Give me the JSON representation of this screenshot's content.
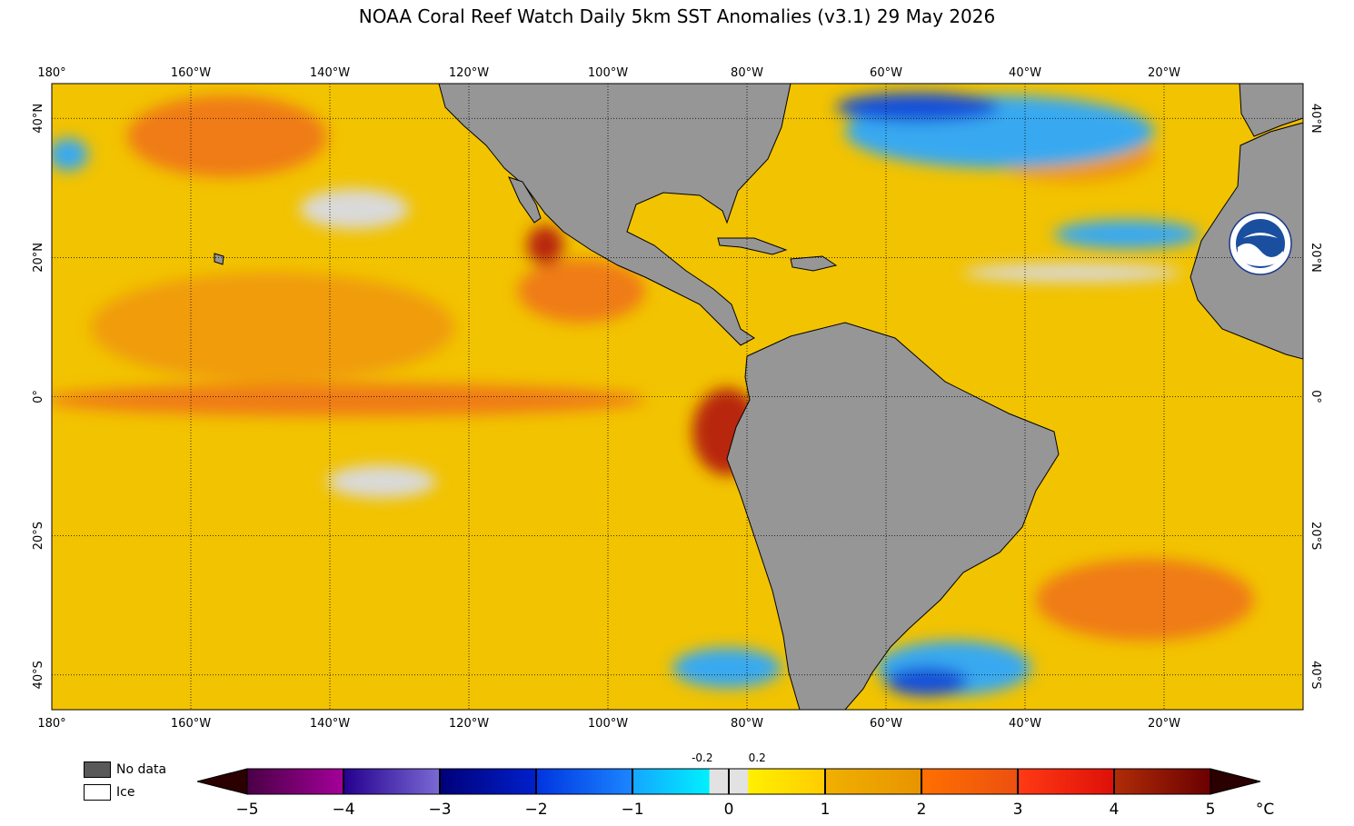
{
  "title": "NOAA Coral Reef Watch Daily 5km SST Anomalies  (v3.1)   29 May 2026",
  "map": {
    "lon_range": [
      -180,
      0
    ],
    "lat_range": [
      -45,
      45
    ],
    "lon_ticks": [
      {
        "lon": -180,
        "label": "180°"
      },
      {
        "lon": -160,
        "label": "160°W"
      },
      {
        "lon": -140,
        "label": "140°W"
      },
      {
        "lon": -120,
        "label": "120°W"
      },
      {
        "lon": -100,
        "label": "100°W"
      },
      {
        "lon": -80,
        "label": "80°W"
      },
      {
        "lon": -60,
        "label": "60°W"
      },
      {
        "lon": -40,
        "label": "40°W"
      },
      {
        "lon": -20,
        "label": "20°W"
      }
    ],
    "lat_ticks": [
      {
        "lat": 40,
        "label": "40°N"
      },
      {
        "lat": 20,
        "label": "20°N"
      },
      {
        "lat": 0,
        "label": "0°"
      },
      {
        "lat": -20,
        "label": "20°S"
      },
      {
        "lat": -40,
        "label": "40°S"
      }
    ],
    "colors": {
      "land": "#969696",
      "ocean_base": "#f2c300",
      "warm": "#ef7b16",
      "hot": "#b8280e",
      "cool": "#37a9f0",
      "cold": "#1450d8",
      "neutral": "#d9d9d9"
    },
    "logo_icon": "noaa-logo-icon"
  },
  "legend": {
    "no_data": "No data",
    "ice": "Ice",
    "unit": "°C",
    "ticks": [
      "−5",
      "−4",
      "−3",
      "−2",
      "−1",
      "0",
      "1",
      "2",
      "3",
      "4",
      "5"
    ],
    "small_ticks": [
      "-0.2",
      "0.2"
    ],
    "segments": [
      {
        "from": -5,
        "to": -4,
        "c1": "#4a0046",
        "c2": "#a4009a"
      },
      {
        "from": -4,
        "to": -3,
        "c1": "#25008e",
        "c2": "#7a6ad4"
      },
      {
        "from": -3,
        "to": -2,
        "c1": "#000078",
        "c2": "#0020cc"
      },
      {
        "from": -2,
        "to": -1,
        "c1": "#0034e0",
        "c2": "#1c86ff"
      },
      {
        "from": -1,
        "to": -0.2,
        "c1": "#14a6ff",
        "c2": "#00f0ff"
      },
      {
        "from": -0.2,
        "to": 0.2,
        "c1": "#e2e2e2",
        "c2": "#e2e2e2"
      },
      {
        "from": 0.2,
        "to": 1,
        "c1": "#fff000",
        "c2": "#ffcc00"
      },
      {
        "from": 1,
        "to": 2,
        "c1": "#f0b000",
        "c2": "#e89400"
      },
      {
        "from": 2,
        "to": 3,
        "c1": "#ff7000",
        "c2": "#ec5010"
      },
      {
        "from": 3,
        "to": 4,
        "c1": "#ff3a14",
        "c2": "#de1008"
      },
      {
        "from": 4,
        "to": 5,
        "c1": "#b02c08",
        "c2": "#6a0000"
      }
    ],
    "under_color": "#2a0000",
    "over_color": "#2a0000"
  }
}
